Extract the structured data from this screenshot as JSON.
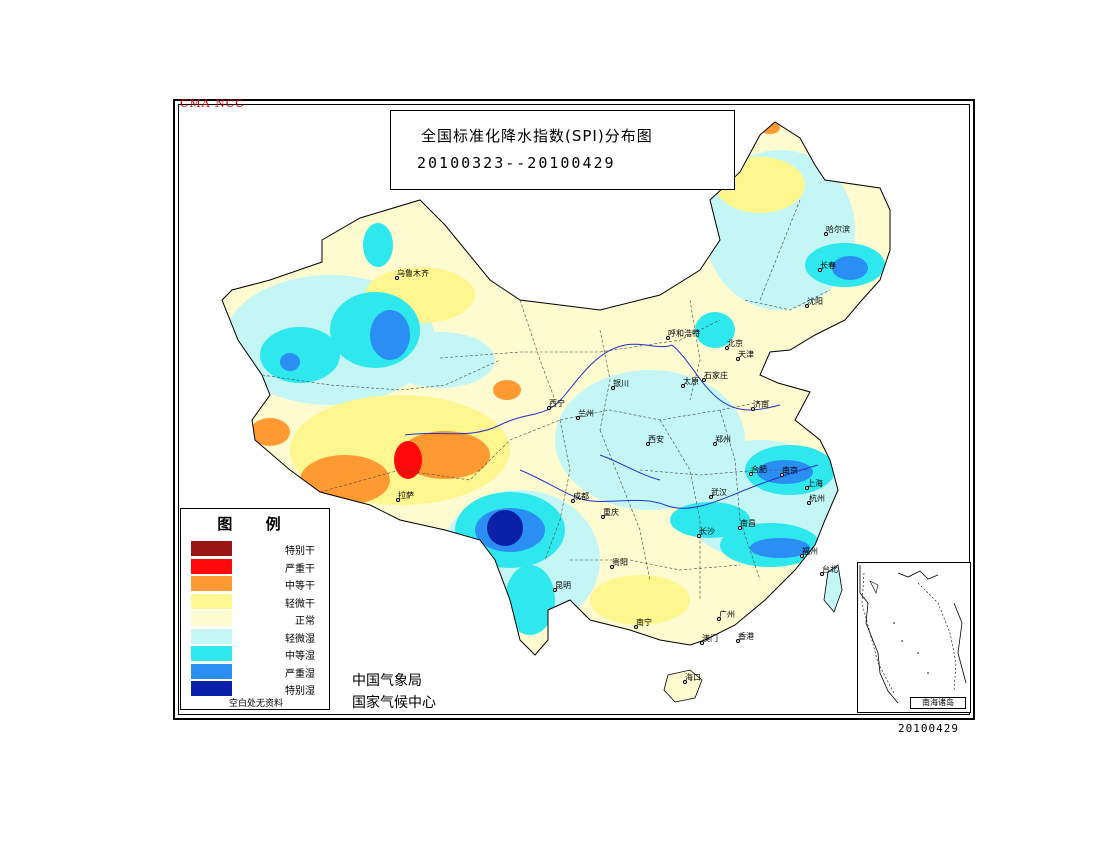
{
  "cma_tag": "CMA NCC",
  "title": {
    "main": "全国标准化降水指数(SPI)分布图",
    "dates": "20100323--20100429"
  },
  "legend": {
    "title": "图 例",
    "items": [
      {
        "label": "特别干",
        "color": "#9b1616"
      },
      {
        "label": "严重干",
        "color": "#ff0a0a"
      },
      {
        "label": "中等干",
        "color": "#ff9a32"
      },
      {
        "label": "轻微干",
        "color": "#fef68e"
      },
      {
        "label": "正常",
        "color": "#fdfbcf"
      },
      {
        "label": "轻微湿",
        "color": "#c5f6f6"
      },
      {
        "label": "中等湿",
        "color": "#2ee8ee"
      },
      {
        "label": "严重湿",
        "color": "#2b8ef2"
      },
      {
        "label": "特别湿",
        "color": "#0a20a8"
      }
    ],
    "footnote": "空白处无资料"
  },
  "agency": [
    "中国气象局",
    "国家气候中心"
  ],
  "inset_label": "南海诸岛",
  "stamp": "20100429",
  "cities": [
    {
      "name": "乌鲁木齐"
    },
    {
      "name": "哈尔滨"
    },
    {
      "name": "长春"
    },
    {
      "name": "沈阳"
    },
    {
      "name": "呼和浩特"
    },
    {
      "name": "北京"
    },
    {
      "name": "天津"
    },
    {
      "name": "太原"
    },
    {
      "name": "石家庄"
    },
    {
      "name": "银川"
    },
    {
      "name": "西宁"
    },
    {
      "name": "兰州"
    },
    {
      "name": "济南"
    },
    {
      "name": "西安"
    },
    {
      "name": "郑州"
    },
    {
      "name": "合肥"
    },
    {
      "name": "南京"
    },
    {
      "name": "上海"
    },
    {
      "name": "杭州"
    },
    {
      "name": "武汉"
    },
    {
      "name": "拉萨"
    },
    {
      "name": "成都"
    },
    {
      "name": "重庆"
    },
    {
      "name": "南昌"
    },
    {
      "name": "长沙"
    },
    {
      "name": "福州"
    },
    {
      "name": "贵阳"
    },
    {
      "name": "昆明"
    },
    {
      "name": "台北"
    },
    {
      "name": "南宁"
    },
    {
      "name": "广州"
    },
    {
      "name": "澳门"
    },
    {
      "name": "香港"
    },
    {
      "name": "海口"
    }
  ]
}
